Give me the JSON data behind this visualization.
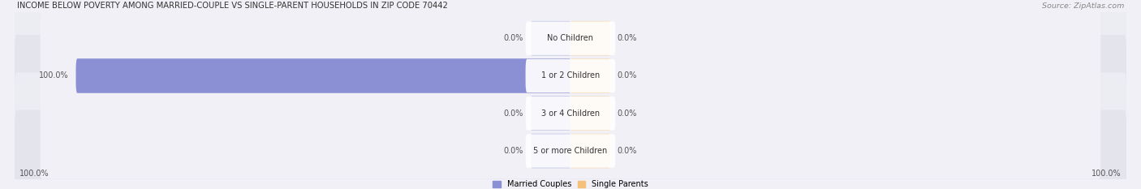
{
  "title": "INCOME BELOW POVERTY AMONG MARRIED-COUPLE VS SINGLE-PARENT HOUSEHOLDS IN ZIP CODE 70442",
  "source": "Source: ZipAtlas.com",
  "categories": [
    "No Children",
    "1 or 2 Children",
    "3 or 4 Children",
    "5 or more Children"
  ],
  "married_values": [
    0.0,
    100.0,
    0.0,
    0.0
  ],
  "single_values": [
    0.0,
    0.0,
    0.0,
    0.0
  ],
  "married_color": "#8b8fd4",
  "married_stub_color": "#b0b4e0",
  "single_color": "#f5c07a",
  "single_stub_color": "#f5d4a8",
  "row_bg_even": "#ececf3",
  "row_bg_odd": "#e4e4ed",
  "inner_bg_color": "#f0f0f6",
  "label_bg_color": "#ffffff",
  "axis_label_left": "100.0%",
  "axis_label_right": "100.0%",
  "figsize": [
    14.06,
    2.33
  ],
  "dpi": 100
}
